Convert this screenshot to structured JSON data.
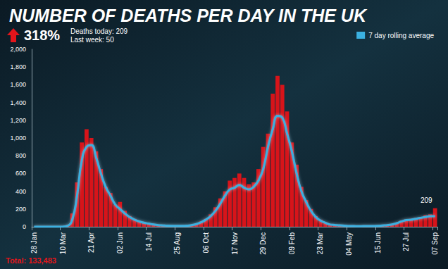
{
  "chart_data": {
    "type": "bar",
    "title": "NUMBER OF DEATHS PER DAY IN THE UK",
    "categories": [
      "28 Jan",
      null,
      null,
      null,
      null,
      null,
      "10 Mar",
      null,
      null,
      null,
      null,
      null,
      "21 Apr",
      null,
      null,
      null,
      null,
      null,
      "02 Jun",
      null,
      null,
      null,
      null,
      null,
      "14 Jul",
      null,
      null,
      null,
      null,
      null,
      "25 Aug",
      null,
      null,
      null,
      null,
      null,
      "06 Oct",
      null,
      null,
      null,
      null,
      null,
      "17 Nov",
      null,
      null,
      null,
      null,
      null,
      "29 Dec",
      null,
      null,
      null,
      null,
      null,
      "09 Feb",
      null,
      null,
      null,
      null,
      null,
      "23 Mar",
      null,
      null,
      null,
      null,
      null,
      "04 May",
      null,
      null,
      null,
      null,
      null,
      "15 Jun",
      null,
      null,
      null,
      null,
      null,
      "27 Jul",
      null,
      null,
      null,
      null,
      null,
      "07 Sep"
    ],
    "series": [
      {
        "type": "bar",
        "color": "#d7141a",
        "values": [
          0,
          0,
          0,
          0,
          0,
          0,
          2,
          20,
          150,
          500,
          950,
          1100,
          1000,
          850,
          650,
          450,
          380,
          250,
          280,
          180,
          120,
          90,
          60,
          50,
          35,
          25,
          20,
          15,
          12,
          10,
          10,
          10,
          12,
          20,
          35,
          60,
          90,
          140,
          220,
          320,
          400,
          520,
          550,
          600,
          550,
          480,
          500,
          650,
          900,
          1050,
          1500,
          1700,
          1600,
          1300,
          950,
          700,
          450,
          300,
          200,
          120,
          80,
          50,
          25,
          20,
          15,
          12,
          8,
          7,
          6,
          7,
          7,
          8,
          10,
          15,
          20,
          30,
          40,
          70,
          80,
          90,
          100,
          110,
          130,
          140,
          209
        ]
      },
      {
        "name": "7 day rolling average",
        "type": "line",
        "color": "#3bb0e0",
        "values": [
          0,
          0,
          0,
          0,
          0,
          0,
          1,
          10,
          80,
          350,
          750,
          900,
          920,
          780,
          600,
          450,
          350,
          250,
          200,
          150,
          110,
          80,
          60,
          45,
          35,
          25,
          18,
          14,
          11,
          10,
          10,
          10,
          12,
          18,
          30,
          50,
          80,
          120,
          180,
          260,
          350,
          420,
          440,
          470,
          440,
          420,
          450,
          520,
          650,
          900,
          1100,
          1250,
          1230,
          1050,
          850,
          600,
          400,
          280,
          180,
          110,
          70,
          45,
          25,
          20,
          15,
          12,
          8,
          7,
          6,
          7,
          7,
          8,
          10,
          14,
          18,
          26,
          40,
          60,
          75,
          80,
          90,
          100,
          110,
          120,
          120
        ]
      }
    ],
    "annotations": [
      "Deaths today: 209",
      "Last week: 50",
      "318%",
      "Total: 133,483",
      "209"
    ],
    "ylim": [
      0,
      2000
    ],
    "yticks": [
      0,
      200,
      400,
      600,
      800,
      {
        "value": 1000,
        "label": "1,000"
      },
      {
        "value": 1200,
        "label": "1,200"
      },
      {
        "value": 1400,
        "label": "1,400"
      },
      {
        "value": 1600,
        "label": "1,600"
      },
      {
        "value": 1800,
        "label": "1,800"
      },
      {
        "value": 2000,
        "label": "2,000"
      }
    ],
    "grid": false,
    "legend": "top-right"
  }
}
